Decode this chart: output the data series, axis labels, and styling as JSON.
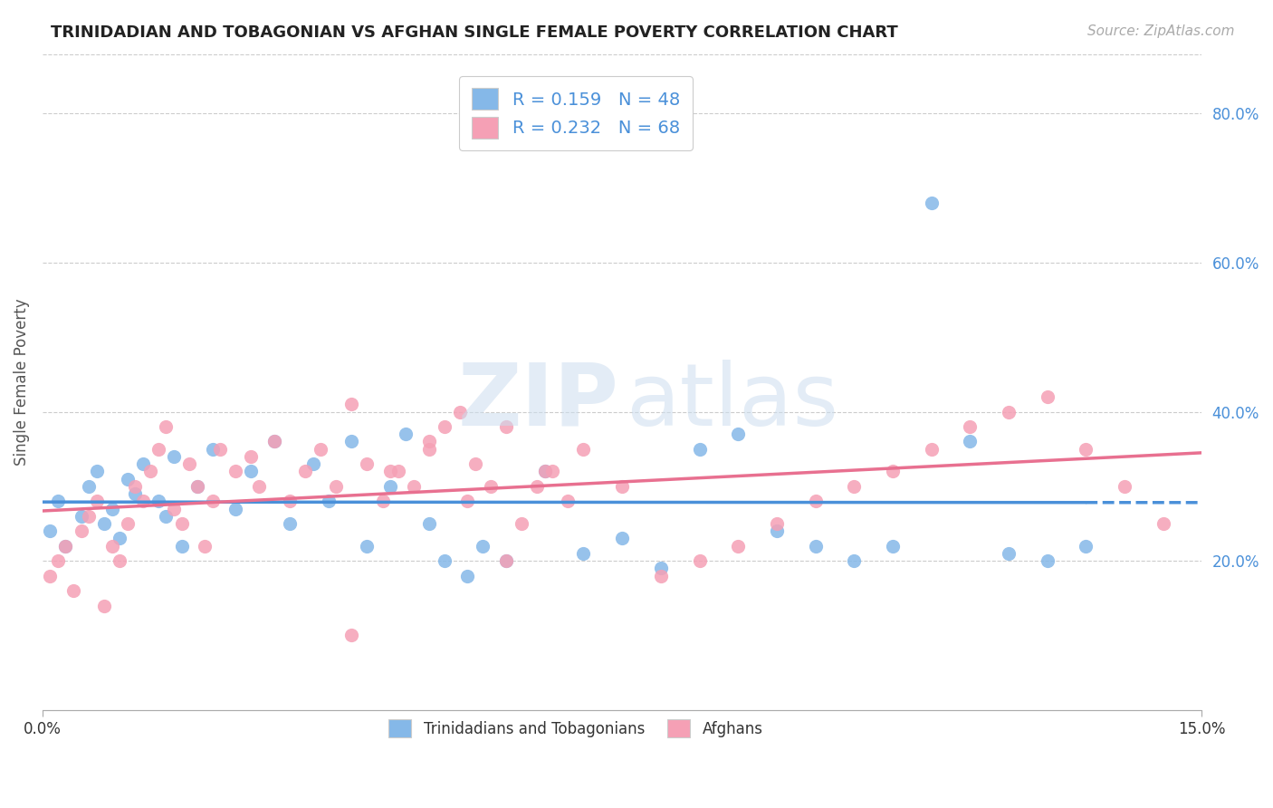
{
  "title": "TRINIDADIAN AND TOBAGONIAN VS AFGHAN SINGLE FEMALE POVERTY CORRELATION CHART",
  "source": "Source: ZipAtlas.com",
  "ylabel": "Single Female Poverty",
  "right_yticks": [
    "20.0%",
    "40.0%",
    "60.0%",
    "80.0%"
  ],
  "right_ytick_vals": [
    0.2,
    0.4,
    0.6,
    0.8
  ],
  "xlim": [
    0.0,
    0.15
  ],
  "ylim": [
    0.0,
    0.88
  ],
  "legend_label_1": "R = 0.159   N = 48",
  "legend_label_2": "R = 0.232   N = 68",
  "legend_bottom_1": "Trinidadians and Tobagonians",
  "legend_bottom_2": "Afghans",
  "color_blue": "#85b8e8",
  "color_pink": "#f5a0b5",
  "color_blue_dark": "#4a90d9",
  "color_pink_dark": "#e87090",
  "R1": 0.159,
  "N1": 48,
  "R2": 0.232,
  "N2": 68,
  "trinidadian_x": [
    0.001,
    0.002,
    0.003,
    0.005,
    0.006,
    0.007,
    0.008,
    0.009,
    0.01,
    0.011,
    0.012,
    0.013,
    0.015,
    0.016,
    0.017,
    0.018,
    0.02,
    0.022,
    0.025,
    0.027,
    0.03,
    0.032,
    0.035,
    0.037,
    0.04,
    0.042,
    0.045,
    0.047,
    0.05,
    0.052,
    0.055,
    0.057,
    0.06,
    0.065,
    0.07,
    0.075,
    0.08,
    0.085,
    0.09,
    0.095,
    0.1,
    0.105,
    0.11,
    0.115,
    0.12,
    0.125,
    0.13,
    0.135
  ],
  "trinidadian_y": [
    0.24,
    0.28,
    0.22,
    0.26,
    0.3,
    0.32,
    0.25,
    0.27,
    0.23,
    0.31,
    0.29,
    0.33,
    0.28,
    0.26,
    0.34,
    0.22,
    0.3,
    0.35,
    0.27,
    0.32,
    0.36,
    0.25,
    0.33,
    0.28,
    0.36,
    0.22,
    0.3,
    0.37,
    0.25,
    0.2,
    0.18,
    0.22,
    0.2,
    0.32,
    0.21,
    0.23,
    0.19,
    0.35,
    0.37,
    0.24,
    0.22,
    0.2,
    0.22,
    0.68,
    0.36,
    0.21,
    0.2,
    0.22
  ],
  "afghan_x": [
    0.001,
    0.002,
    0.003,
    0.004,
    0.005,
    0.006,
    0.007,
    0.008,
    0.009,
    0.01,
    0.011,
    0.012,
    0.013,
    0.014,
    0.015,
    0.016,
    0.017,
    0.018,
    0.019,
    0.02,
    0.021,
    0.022,
    0.023,
    0.025,
    0.027,
    0.028,
    0.03,
    0.032,
    0.034,
    0.036,
    0.038,
    0.04,
    0.042,
    0.044,
    0.046,
    0.048,
    0.05,
    0.052,
    0.054,
    0.056,
    0.058,
    0.06,
    0.062,
    0.064,
    0.066,
    0.068,
    0.07,
    0.075,
    0.08,
    0.085,
    0.09,
    0.095,
    0.1,
    0.105,
    0.11,
    0.115,
    0.12,
    0.125,
    0.13,
    0.135,
    0.14,
    0.145,
    0.06,
    0.065,
    0.055,
    0.05,
    0.045,
    0.04
  ],
  "afghan_y": [
    0.18,
    0.2,
    0.22,
    0.16,
    0.24,
    0.26,
    0.28,
    0.14,
    0.22,
    0.2,
    0.25,
    0.3,
    0.28,
    0.32,
    0.35,
    0.38,
    0.27,
    0.25,
    0.33,
    0.3,
    0.22,
    0.28,
    0.35,
    0.32,
    0.34,
    0.3,
    0.36,
    0.28,
    0.32,
    0.35,
    0.3,
    0.41,
    0.33,
    0.28,
    0.32,
    0.3,
    0.35,
    0.38,
    0.4,
    0.33,
    0.3,
    0.2,
    0.25,
    0.3,
    0.32,
    0.28,
    0.35,
    0.3,
    0.18,
    0.2,
    0.22,
    0.25,
    0.28,
    0.3,
    0.32,
    0.35,
    0.38,
    0.4,
    0.42,
    0.35,
    0.3,
    0.25,
    0.38,
    0.32,
    0.28,
    0.36,
    0.32,
    0.1
  ]
}
